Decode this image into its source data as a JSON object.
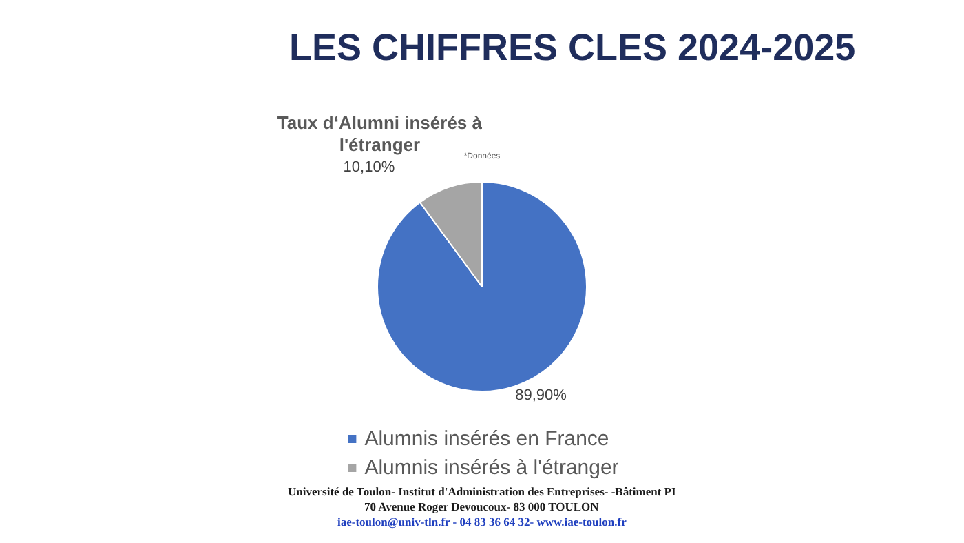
{
  "chart_data": {
    "type": "pie",
    "title": "LES CHIFFRES CLES 2024-2025",
    "subtitle": "Taux d‘Alumni insérés à\nl'étranger",
    "annotations": [
      "*Données",
      "Université de Toulon- Institut d'Administration des Entreprises- -Bâtiment PI",
      "70 Avenue Roger Devoucoux- 83 000 TOULON",
      "iae-toulon@univ-tln.fr - 04 83 36 64 32- www.iae-toulon.fr"
    ],
    "categories": [
      "Alumnis insérés en France",
      "Alumnis insérés à l'étranger"
    ],
    "values": [
      89.9,
      10.1
    ],
    "colors": [
      "#4472c4",
      "#a5a5a5"
    ],
    "value_labels": [
      "89,90%",
      "10,10%"
    ],
    "legend": "bottom"
  }
}
